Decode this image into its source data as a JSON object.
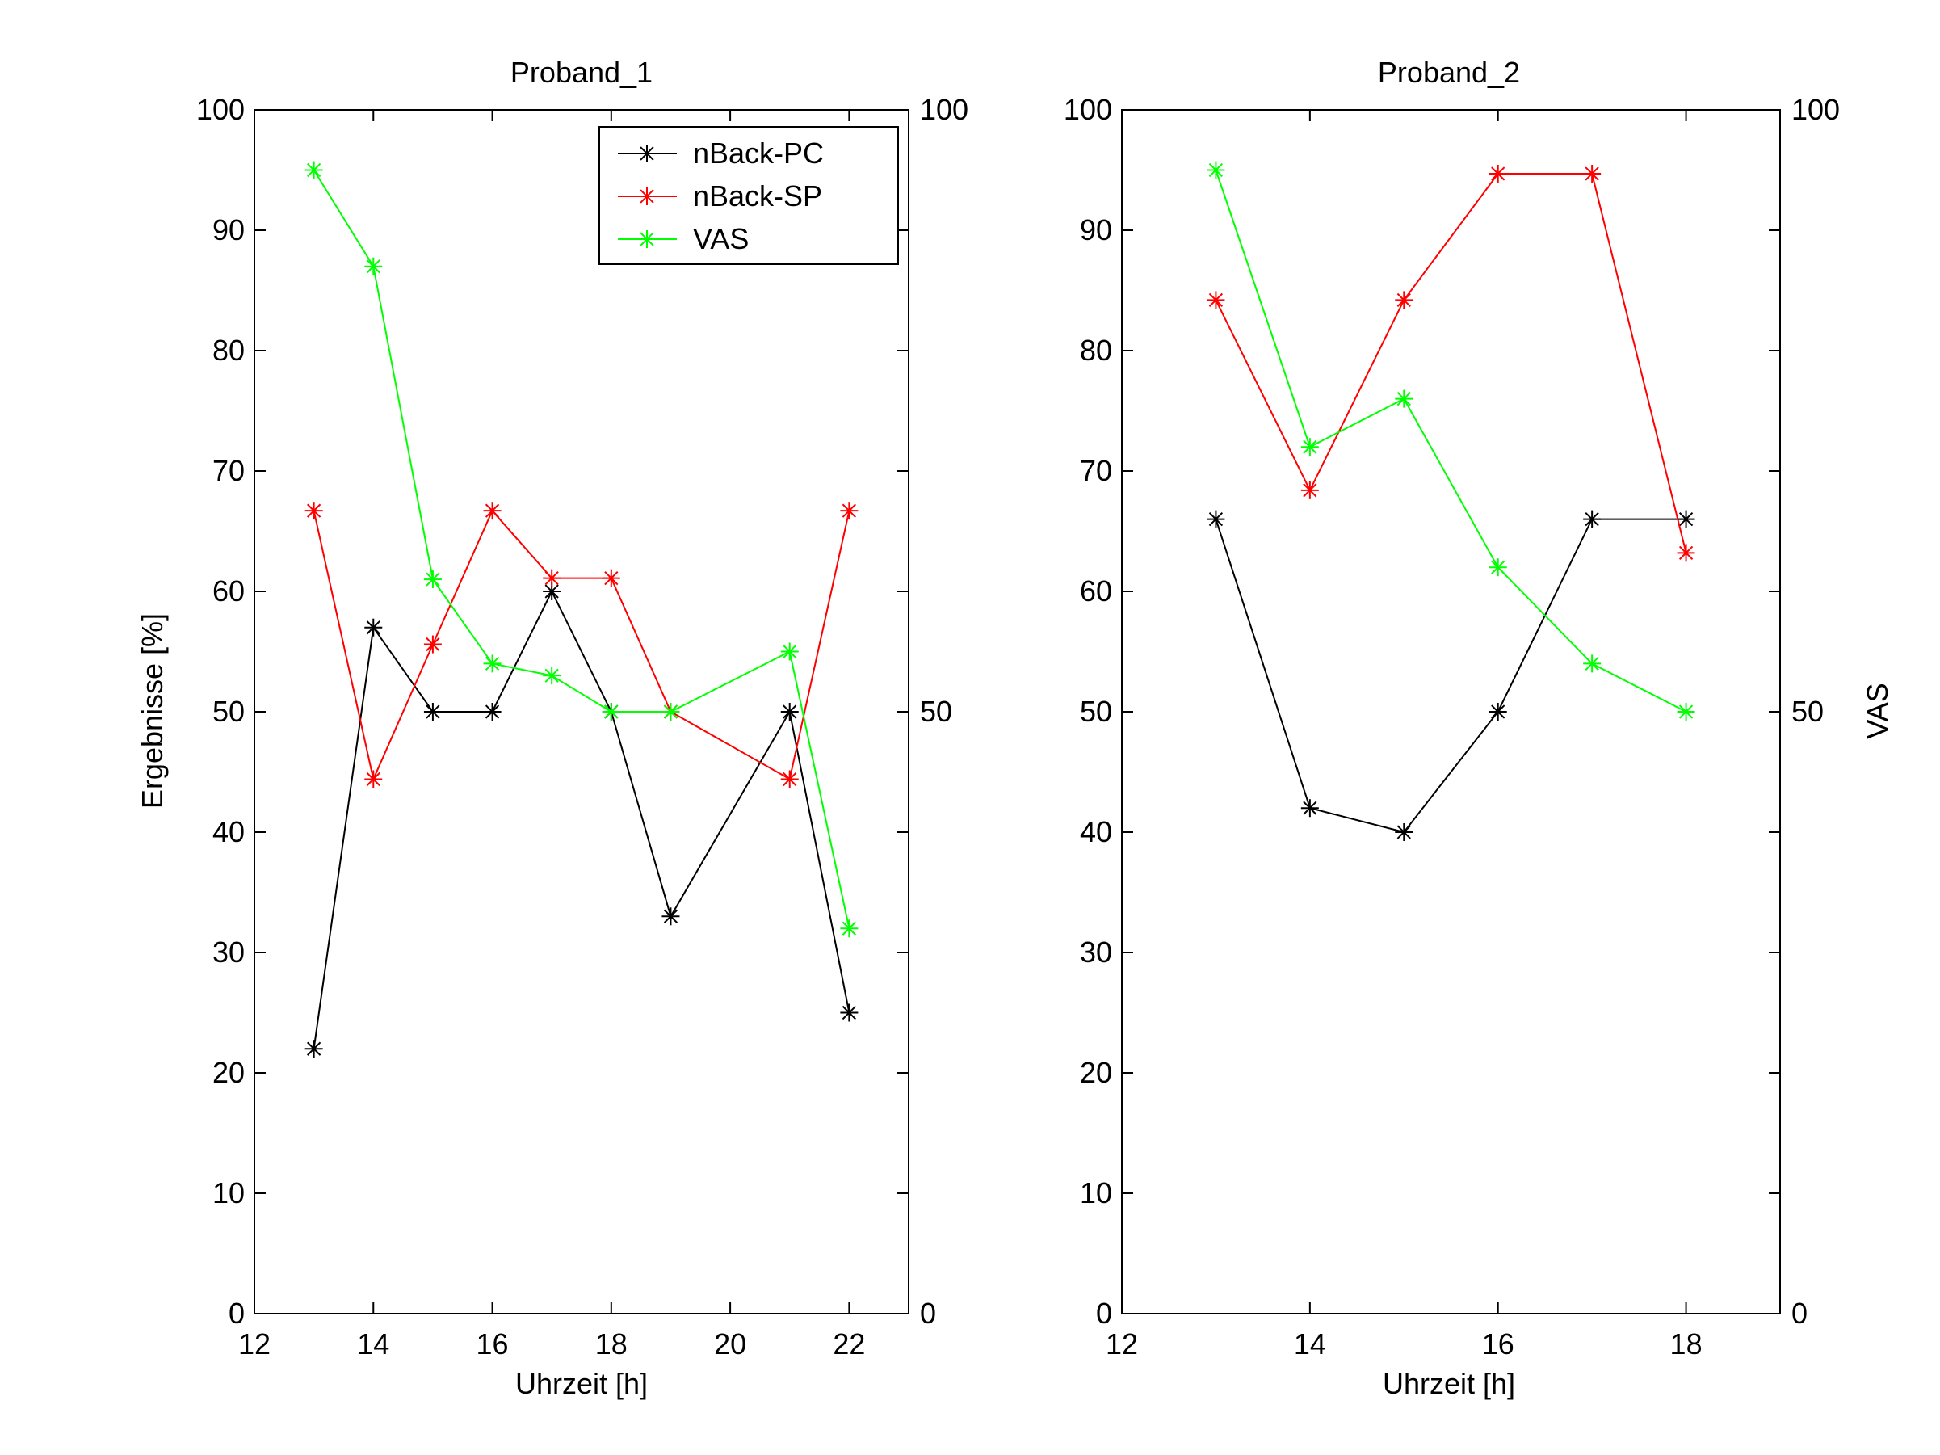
{
  "chart_data": [
    {
      "type": "line",
      "title": "Proband_1",
      "xlabel": "Uhrzeit [h]",
      "ylabel": "Ergebnisse [%]",
      "y2label": "",
      "xlim": [
        12,
        23
      ],
      "ylim": [
        0,
        100
      ],
      "y2lim": [
        0,
        100
      ],
      "xticks": [
        12,
        14,
        16,
        18,
        20,
        22
      ],
      "yticks": [
        0,
        10,
        20,
        30,
        40,
        50,
        60,
        70,
        80,
        90,
        100
      ],
      "y2ticks": [
        0,
        50,
        100
      ],
      "legend": {
        "placement": "top-right",
        "entries": [
          "nBack-PC",
          "nBack-SP",
          "VAS"
        ]
      },
      "series": [
        {
          "name": "nBack-PC",
          "color": "#000000",
          "marker": "asterisk",
          "x": [
            13,
            14,
            15,
            16,
            17,
            18,
            19,
            21,
            22
          ],
          "y": [
            22,
            57,
            50,
            50,
            60,
            50,
            33,
            50,
            25
          ]
        },
        {
          "name": "nBack-SP",
          "color": "#ff0000",
          "marker": "asterisk",
          "x": [
            13,
            14,
            15,
            16,
            17,
            18,
            19,
            21,
            22
          ],
          "y": [
            66.7,
            44.4,
            55.6,
            66.7,
            61.1,
            61.1,
            50,
            44.4,
            66.7
          ]
        },
        {
          "name": "VAS",
          "color": "#00ff00",
          "marker": "asterisk",
          "x": [
            13,
            14,
            15,
            16,
            17,
            18,
            19,
            21,
            22
          ],
          "y": [
            95,
            87,
            61,
            54,
            53,
            50,
            50,
            55,
            32
          ]
        }
      ]
    },
    {
      "type": "line",
      "title": "Proband_2",
      "xlabel": "Uhrzeit [h]",
      "ylabel": "",
      "y2label": "VAS",
      "xlim": [
        12,
        19
      ],
      "ylim": [
        0,
        100
      ],
      "y2lim": [
        0,
        100
      ],
      "xticks": [
        12,
        14,
        16,
        18
      ],
      "yticks": [
        0,
        10,
        20,
        30,
        40,
        50,
        60,
        70,
        80,
        90,
        100
      ],
      "y2ticks": [
        0,
        50,
        100
      ],
      "series": [
        {
          "name": "nBack-PC",
          "color": "#000000",
          "marker": "asterisk",
          "x": [
            13,
            14,
            15,
            16,
            17,
            18
          ],
          "y": [
            66,
            42,
            40,
            50,
            66,
            66
          ]
        },
        {
          "name": "nBack-SP",
          "color": "#ff0000",
          "marker": "asterisk",
          "x": [
            13,
            14,
            15,
            16,
            17,
            18
          ],
          "y": [
            84.2,
            68.4,
            84.2,
            94.7,
            94.7,
            63.2
          ]
        },
        {
          "name": "VAS",
          "color": "#00ff00",
          "marker": "asterisk",
          "x": [
            13,
            14,
            15,
            16,
            17,
            18
          ],
          "y": [
            95,
            72,
            76,
            62,
            54,
            50
          ]
        }
      ]
    }
  ]
}
